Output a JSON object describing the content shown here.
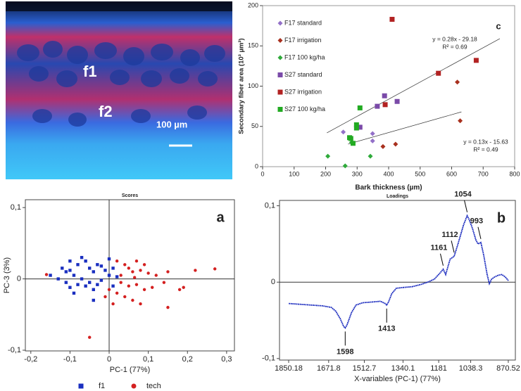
{
  "micrograph": {
    "labels": [
      "f1",
      "f2",
      "100 µm"
    ]
  },
  "chart_data": [
    {
      "type": "scatter",
      "panel_label": "c",
      "x_label": "Bark thickness (µm)",
      "y_label": "Secondary fiber area (10³ µm²)",
      "xlim": [
        0,
        800
      ],
      "xticks": [
        0,
        100,
        200,
        300,
        400,
        500,
        600,
        700,
        800
      ],
      "ylim": [
        0,
        200
      ],
      "yticks": [
        0,
        50,
        100,
        150,
        200
      ],
      "legend": "upper left",
      "grid": false,
      "series": [
        {
          "name": "F17 standard",
          "color": "#9370c8",
          "marker": "diamond",
          "x": [
            256,
            349,
            349
          ],
          "y": [
            43,
            41,
            32
          ]
        },
        {
          "name": "F17 irrigation",
          "color": "#a8301e",
          "marker": "diamond",
          "x": [
            382,
            422,
            618,
            627
          ],
          "y": [
            25,
            28,
            105,
            57
          ]
        },
        {
          "name": "F17 100 kg/ha",
          "color": "#2eaa3a",
          "marker": "diamond",
          "x": [
            207,
            262,
            282,
            342
          ],
          "y": [
            13,
            1,
            30,
            13
          ]
        },
        {
          "name": "S27 standard",
          "color": "#7a4aa8",
          "marker": "square",
          "x": [
            309,
            364,
            387,
            427
          ],
          "y": [
            49,
            75,
            88,
            81
          ]
        },
        {
          "name": "S27 irrigation",
          "color": "#b22222",
          "marker": "square",
          "x": [
            411,
            389,
            558,
            678
          ],
          "y": [
            183,
            77,
            116,
            132
          ]
        },
        {
          "name": "S27 100 kg/ha",
          "color": "#22aa22",
          "marker": "square",
          "x": [
            309,
            298,
            298,
            276,
            280,
            287
          ],
          "y": [
            73,
            52,
            48,
            36,
            35,
            29
          ]
        }
      ],
      "trendlines": [
        {
          "x": [
            204,
            753
          ],
          "y": [
            42,
            159
          ],
          "equation": "y = 0.28x - 29.18",
          "r2": "R² = 0.69"
        },
        {
          "x": [
            271,
            631
          ],
          "y": [
            28,
            68
          ],
          "equation": "y = 0.13x - 15.63",
          "r2": "R² = 0.49"
        }
      ]
    },
    {
      "type": "scatter",
      "title": "Scores",
      "panel_label": "a",
      "x_label": "PC-1 (77%)",
      "y_label": "PC-3 (3%)",
      "xlim": [
        -0.214,
        0.32
      ],
      "xticks": [
        {
          "value": -0.2,
          "label": "-0,2"
        },
        {
          "value": -0.1,
          "label": "-0,1"
        },
        0,
        {
          "value": 0.1,
          "label": "0,1"
        },
        {
          "value": 0.2,
          "label": "0,2"
        },
        {
          "value": 0.3,
          "label": "0,3"
        }
      ],
      "ylim": [
        -0.101,
        0.111
      ],
      "yticks": [
        {
          "value": -0.1,
          "label": "-0,1"
        },
        0,
        {
          "value": 0.1,
          "label": "0,1"
        }
      ],
      "zero_axes": true,
      "legend": "bottom",
      "series": [
        {
          "name": "f1",
          "color": "#1a2fc0",
          "marker": "square",
          "x": [
            -0.12,
            -0.11,
            -0.1,
            -0.09,
            -0.08,
            -0.07,
            -0.06,
            -0.05,
            -0.04,
            -0.03,
            -0.02,
            -0.01,
            0.0,
            0.01,
            -0.13,
            -0.11,
            -0.1,
            -0.08,
            -0.07,
            -0.06,
            -0.05,
            -0.04,
            -0.03,
            -0.02,
            0.0,
            0.02,
            -0.09,
            -0.15,
            -0.1,
            -0.04,
            0.01
          ],
          "y": [
            0.015,
            0.01,
            0.012,
            0.005,
            0.02,
            0.03,
            0.025,
            0.015,
            0.01,
            0.02,
            0.018,
            0.012,
            0.028,
            0.015,
            0.0,
            -0.005,
            -0.012,
            -0.008,
            0.0,
            -0.01,
            -0.005,
            -0.015,
            -0.008,
            -0.002,
            0.005,
            0.003,
            -0.02,
            0.005,
            0.025,
            -0.03,
            -0.01
          ]
        },
        {
          "name": "tech",
          "color": "#d42020",
          "marker": "circle",
          "x": [
            -0.16,
            -0.05,
            0.02,
            0.04,
            0.05,
            0.06,
            0.07,
            0.08,
            0.09,
            0.1,
            0.03,
            0.05,
            0.07,
            0.09,
            0.11,
            0.04,
            0.06,
            0.02,
            0.0,
            -0.01,
            0.01,
            0.08,
            0.12,
            0.15,
            0.15,
            0.18,
            0.22,
            0.27,
            0.19,
            0.14,
            0.03,
            0.065
          ],
          "y": [
            0.006,
            -0.082,
            0.025,
            0.02,
            0.015,
            0.01,
            0.025,
            0.012,
            0.02,
            0.008,
            -0.005,
            -0.01,
            -0.008,
            -0.015,
            -0.012,
            -0.025,
            -0.03,
            -0.02,
            -0.015,
            -0.025,
            -0.035,
            -0.035,
            0.005,
            0.01,
            -0.04,
            -0.015,
            0.012,
            0.014,
            -0.012,
            -0.005,
            0.005,
            0.002
          ]
        }
      ]
    },
    {
      "type": "line",
      "title": "Loadings",
      "panel_label": "b",
      "x_label": "X-variables (PC-1) (77%)",
      "color": "#2030c0",
      "xlim": [
        1891,
        839
      ],
      "xticks": [
        1850.18,
        1671.8,
        1512.7,
        1340.1,
        1181,
        1038.3,
        870.52
      ],
      "ylim": [
        -0.102,
        0.107
      ],
      "yticks": [
        {
          "value": -0.1,
          "label": "-0,1"
        },
        0,
        {
          "value": 0.1,
          "label": "0,1"
        }
      ],
      "zero_line": true,
      "x": [
        1850,
        1800,
        1750,
        1700,
        1660,
        1640,
        1620,
        1605,
        1598,
        1590,
        1570,
        1550,
        1520,
        1480,
        1440,
        1420,
        1413,
        1405,
        1390,
        1370,
        1340,
        1300,
        1260,
        1230,
        1200,
        1175,
        1161,
        1150,
        1130,
        1112,
        1095,
        1070,
        1054,
        1045,
        1030,
        1015,
        1005,
        993,
        980,
        965,
        955,
        945,
        930,
        915,
        900,
        885,
        870
      ],
      "values": [
        -0.028,
        -0.029,
        -0.03,
        -0.031,
        -0.033,
        -0.038,
        -0.048,
        -0.058,
        -0.06,
        -0.056,
        -0.04,
        -0.03,
        -0.027,
        -0.026,
        -0.025,
        -0.028,
        -0.03,
        -0.026,
        -0.015,
        -0.008,
        -0.007,
        -0.006,
        -0.003,
        0.0,
        0.004,
        0.012,
        0.017,
        0.01,
        0.03,
        0.034,
        0.05,
        0.075,
        0.087,
        0.082,
        0.07,
        0.055,
        0.05,
        0.052,
        0.035,
        0.01,
        -0.002,
        0.004,
        0.007,
        0.009,
        0.01,
        0.007,
        0.002
      ],
      "annotations": [
        {
          "text": "1598",
          "x": 1598,
          "y": -0.06
        },
        {
          "text": "1413",
          "x": 1413,
          "y": -0.03
        },
        {
          "text": "1161",
          "x": 1161,
          "y": 0.017
        },
        {
          "text": "1112",
          "x": 1112,
          "y": 0.034
        },
        {
          "text": "1054",
          "x": 1054,
          "y": 0.087
        },
        {
          "text": "993",
          "x": 993,
          "y": 0.052
        }
      ]
    }
  ]
}
